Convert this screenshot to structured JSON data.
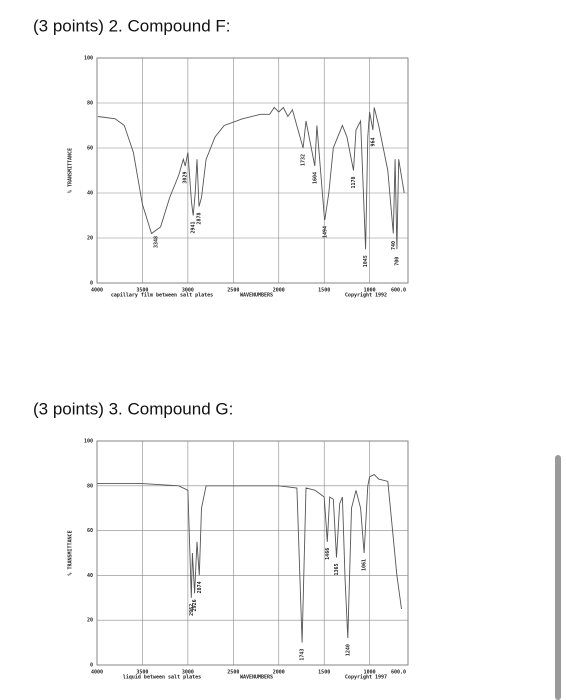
{
  "chart_data": [
    {
      "type": "line",
      "title": "(3 points) 2. Compound F:",
      "xlabel": "WAVENUMBERS",
      "ylabel": "% TRANSMITTANCE",
      "note": "capillary film between salt plates",
      "copyright": "Copyright 1992",
      "xlim": [
        4000,
        600
      ],
      "ylim": [
        0,
        100
      ],
      "xticks": [
        4000,
        3500,
        3000,
        2500,
        2000,
        1500,
        1000,
        {
          "value": 600,
          "label": "600.0"
        }
      ],
      "yticks": [
        0,
        20,
        40,
        60,
        80,
        100
      ],
      "grid": true,
      "x": [
        3990,
        3800,
        3700,
        3600,
        3500,
        3400,
        3300,
        3200,
        3100,
        3050,
        3030,
        3000,
        2960,
        2941,
        2920,
        2900,
        2878,
        2850,
        2800,
        2700,
        2600,
        2400,
        2200,
        2100,
        2050,
        2000,
        1950,
        1900,
        1850,
        1732,
        1700,
        1604,
        1580,
        1500,
        1494,
        1450,
        1400,
        1350,
        1300,
        1250,
        1178,
        1150,
        1100,
        1045,
        1020,
        1000,
        964,
        950,
        900,
        800,
        740,
        720,
        700,
        680,
        620
      ],
      "series": [
        {
          "color": "#555555",
          "values": [
            74,
            73,
            70,
            58,
            35,
            22,
            25,
            38,
            48,
            55,
            52,
            58,
            36,
            30,
            40,
            55,
            34,
            38,
            55,
            65,
            70,
            73,
            75,
            75,
            78,
            76,
            78,
            74,
            77,
            60,
            72,
            52,
            70,
            30,
            28,
            40,
            60,
            65,
            70,
            65,
            50,
            68,
            72,
            15,
            65,
            76,
            68,
            78,
            70,
            50,
            22,
            55,
            15,
            55,
            40
          ]
        }
      ],
      "peaks": [
        3348,
        3029,
        2941,
        2878,
        1732,
        1604,
        1494,
        1178,
        1045,
        964,
        740,
        700
      ]
    },
    {
      "type": "line",
      "title": "(3 points) 3. Compound G:",
      "xlabel": "WAVENUMBERS",
      "ylabel": "% TRANSMITTANCE",
      "note": "liquid between salt plates",
      "copyright": "Copyright 1997",
      "xlim": [
        4000,
        600
      ],
      "ylim": [
        0,
        100
      ],
      "xticks": [
        4000,
        3500,
        3000,
        2500,
        2000,
        1500,
        1000,
        {
          "value": 600,
          "label": "600.0"
        }
      ],
      "yticks": [
        0,
        20,
        40,
        60,
        80,
        100
      ],
      "grid": true,
      "x": [
        4000,
        3500,
        3100,
        3000,
        2962,
        2950,
        2926,
        2900,
        2874,
        2850,
        2800,
        2500,
        2000,
        1800,
        1743,
        1700,
        1600,
        1500,
        1466,
        1440,
        1400,
        1365,
        1330,
        1300,
        1270,
        1240,
        1200,
        1150,
        1100,
        1061,
        1020,
        1000,
        950,
        900,
        800,
        700,
        650
      ],
      "series": [
        {
          "color": "#555555",
          "values": [
            81,
            81,
            80,
            78,
            30,
            50,
            32,
            55,
            40,
            70,
            80,
            80,
            80,
            79,
            10,
            79,
            78,
            75,
            55,
            75,
            74,
            48,
            72,
            75,
            38,
            12,
            70,
            78,
            70,
            50,
            80,
            84,
            85,
            83,
            82,
            40,
            25
          ]
        }
      ],
      "peaks": [
        2962,
        2926,
        2874,
        1743,
        1466,
        1365,
        1240,
        1061
      ]
    }
  ]
}
